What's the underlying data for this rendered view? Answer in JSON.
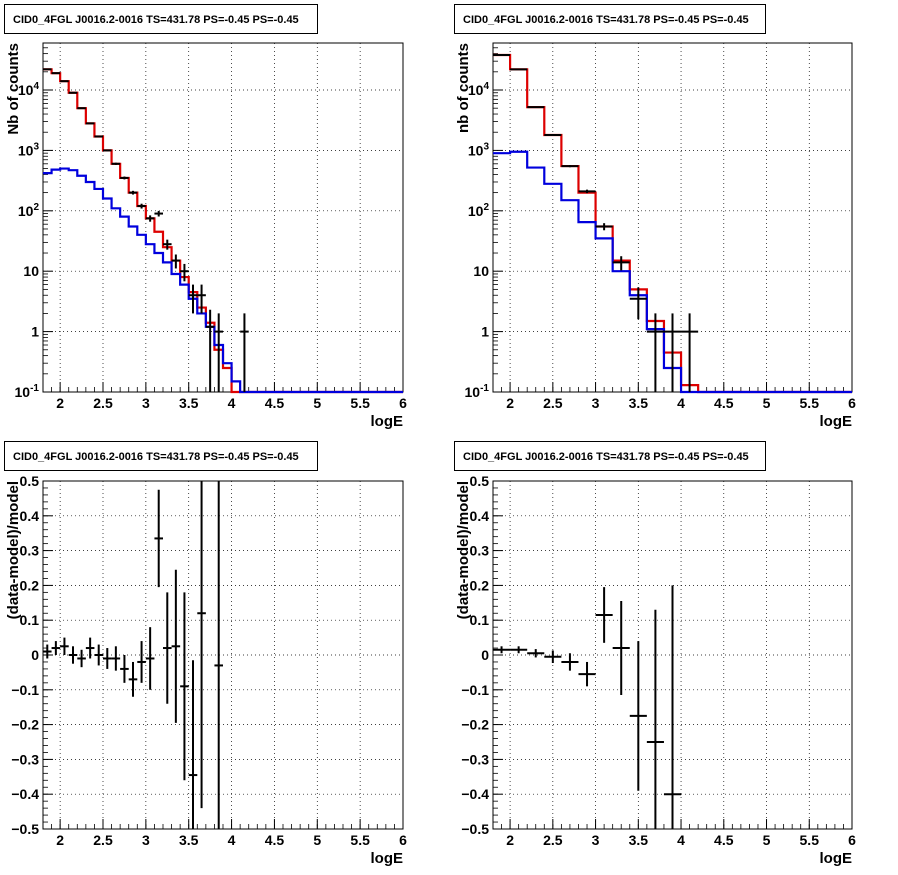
{
  "chart_data": [
    {
      "type": "histogram",
      "title": "CID0_4FGL J0016.2-0016 TS=431.78 PS=-0.45 PS=-0.45",
      "xlabel": "logE",
      "ylabel": "Nb of counts",
      "xlim": [
        1.8,
        6.0
      ],
      "ylim": [
        0.1,
        60000
      ],
      "yscale": "log",
      "grid": true,
      "xticks": [
        "2",
        "2.5",
        "3",
        "3.5",
        "4",
        "4.5",
        "5",
        "5.5",
        "6"
      ],
      "yticks": [
        "10^-1",
        "1",
        "10",
        "10^2",
        "10^3",
        "10^4"
      ],
      "bin_edges": [
        1.8,
        1.9,
        2.0,
        2.1,
        2.2,
        2.3,
        2.4,
        2.5,
        2.6,
        2.7,
        2.8,
        2.9,
        3.0,
        3.1,
        3.2,
        3.3,
        3.4,
        3.5,
        3.6,
        3.7,
        3.8,
        3.9,
        4.0,
        4.1,
        4.2,
        4.3,
        4.4,
        4.5,
        4.6,
        4.7,
        4.8,
        4.9,
        5.0,
        5.1,
        5.2,
        5.3,
        5.4,
        5.5,
        5.6,
        5.7,
        5.8,
        5.9,
        6.0
      ],
      "series": [
        {
          "color": "#dd0000",
          "style": "step",
          "values": [
            22000,
            19000,
            14000,
            9000,
            5000,
            2800,
            1700,
            1000,
            600,
            350,
            200,
            120,
            75,
            45,
            25,
            15,
            8,
            4.5,
            2.5,
            1.4,
            0.5,
            0.25,
            0.1,
            0.1,
            0.1,
            0.1,
            0.1,
            0.1,
            0.1,
            0.1,
            0.1,
            0.1,
            0.1,
            0.1,
            0.1,
            0.1,
            0.1,
            0.1,
            0.1,
            0.1,
            0.1,
            0.1
          ]
        },
        {
          "color": "#0000dd",
          "style": "step",
          "values": [
            420,
            480,
            500,
            470,
            380,
            300,
            230,
            160,
            110,
            80,
            55,
            40,
            28,
            20,
            14,
            9,
            6,
            3.5,
            2,
            1.2,
            0.6,
            0.3,
            0.15,
            0.1,
            0.1,
            0.1,
            0.1,
            0.1,
            0.1,
            0.1,
            0.1,
            0.1,
            0.1,
            0.1,
            0.1,
            0.1,
            0.1,
            0.1,
            0.1,
            0.1,
            0.1,
            0.1
          ]
        },
        {
          "color": "#000000",
          "style": "points",
          "x": [
            1.85,
            1.95,
            2.05,
            2.15,
            2.25,
            2.35,
            2.45,
            2.55,
            2.65,
            2.75,
            2.85,
            2.95,
            3.05,
            3.15,
            3.25,
            3.35,
            3.45,
            3.55,
            3.65,
            3.75,
            3.85,
            4.15
          ],
          "y": [
            22000,
            19000,
            14000,
            9000,
            5000,
            2800,
            1700,
            1000,
            600,
            350,
            200,
            120,
            75,
            90,
            28,
            15,
            10,
            4,
            4,
            1.2,
            1,
            1
          ],
          "err": [
            150,
            140,
            120,
            95,
            70,
            53,
            41,
            32,
            25,
            19,
            14,
            11,
            9,
            9.5,
            5.3,
            3.9,
            3.2,
            2,
            2,
            1.1,
            1,
            1
          ]
        }
      ]
    },
    {
      "type": "histogram",
      "title": "CID0_4FGL J0016.2-0016 TS=431.78 PS=-0.45 PS=-0.45",
      "xlabel": "logE",
      "ylabel": "nb of counts",
      "xlim": [
        1.8,
        6.0
      ],
      "ylim": [
        0.1,
        60000
      ],
      "yscale": "log",
      "grid": true,
      "xticks": [
        "2",
        "2.5",
        "3",
        "3.5",
        "4",
        "4.5",
        "5",
        "5.5",
        "6"
      ],
      "yticks": [
        "10^-1",
        "1",
        "10",
        "10^2",
        "10^3",
        "10^4"
      ],
      "bin_edges": [
        1.8,
        2.0,
        2.2,
        2.4,
        2.6,
        2.8,
        3.0,
        3.2,
        3.4,
        3.6,
        3.8,
        4.0,
        4.2,
        4.4,
        4.6,
        4.8,
        5.0,
        5.2,
        5.4,
        5.6,
        5.8,
        6.0
      ],
      "series": [
        {
          "color": "#dd0000",
          "style": "step",
          "values": [
            38000,
            22000,
            5200,
            1800,
            550,
            200,
            55,
            15,
            5,
            1.5,
            0.45,
            0.13,
            0.1,
            0.1,
            0.1,
            0.1,
            0.1,
            0.1,
            0.1,
            0.1,
            0.1
          ]
        },
        {
          "color": "#0000dd",
          "style": "step",
          "values": [
            900,
            950,
            520,
            280,
            150,
            65,
            35,
            10,
            4,
            1.1,
            0.25,
            0.1,
            0.1,
            0.1,
            0.1,
            0.1,
            0.1,
            0.1,
            0.1,
            0.1,
            0.1
          ]
        },
        {
          "color": "#000000",
          "style": "points",
          "x": [
            1.9,
            2.1,
            2.3,
            2.5,
            2.7,
            2.9,
            3.1,
            3.3,
            3.5,
            3.7,
            3.9,
            4.1
          ],
          "y": [
            38000,
            22000,
            5200,
            1800,
            550,
            210,
            55,
            14,
            3.5,
            1,
            1,
            1
          ],
          "err": [
            195,
            148,
            72,
            42,
            23,
            14,
            7.4,
            3.7,
            1.9,
            1,
            1,
            1
          ]
        }
      ]
    },
    {
      "type": "scatter",
      "title": "CID0_4FGL J0016.2-0016 TS=431.78 PS=-0.45 PS=-0.45",
      "xlabel": "logE",
      "ylabel": "(data-model)/model",
      "xlim": [
        1.8,
        6.0
      ],
      "ylim": [
        -0.5,
        0.5
      ],
      "grid": true,
      "xticks": [
        "2",
        "2.5",
        "3",
        "3.5",
        "4",
        "4.5",
        "5",
        "5.5",
        "6"
      ],
      "yticks": [
        "−0.5",
        "−0.4",
        "−0.3",
        "−0.2",
        "−0.1",
        "0",
        "0.1",
        "0.2",
        "0.3",
        "0.4",
        "0.5"
      ],
      "series": [
        {
          "color": "#000000",
          "style": "points",
          "xhalf": 0.05,
          "x": [
            1.85,
            1.95,
            2.05,
            2.15,
            2.25,
            2.35,
            2.45,
            2.55,
            2.65,
            2.75,
            2.85,
            2.95,
            3.05,
            3.15,
            3.25,
            3.35,
            3.45,
            3.55,
            3.65,
            3.85
          ],
          "y": [
            0.01,
            0.02,
            0.025,
            0.0,
            -0.01,
            0.02,
            0.0,
            -0.01,
            -0.01,
            -0.04,
            -0.07,
            -0.02,
            -0.01,
            0.335,
            0.02,
            0.025,
            -0.09,
            -0.345,
            0.12,
            -0.03
          ],
          "err": [
            0.02,
            0.02,
            0.025,
            0.025,
            0.025,
            0.03,
            0.03,
            0.03,
            0.035,
            0.04,
            0.05,
            0.06,
            0.09,
            0.14,
            0.16,
            0.22,
            0.27,
            0.33,
            0.56,
            0.95
          ]
        }
      ]
    },
    {
      "type": "scatter",
      "title": "CID0_4FGL J0016.2-0016 TS=431.78 PS=-0.45 PS=-0.45",
      "xlabel": "logE",
      "ylabel": "(data-model)/model",
      "xlim": [
        1.8,
        6.0
      ],
      "ylim": [
        -0.5,
        0.5
      ],
      "grid": true,
      "xticks": [
        "2",
        "2.5",
        "3",
        "3.5",
        "4",
        "4.5",
        "5",
        "5.5",
        "6"
      ],
      "yticks": [
        "−0.5",
        "−0.4",
        "−0.3",
        "−0.2",
        "−0.1",
        "0",
        "0.1",
        "0.2",
        "0.3",
        "0.4",
        "0.5"
      ],
      "series": [
        {
          "color": "#000000",
          "style": "points",
          "xhalf": 0.1,
          "x": [
            1.9,
            2.1,
            2.3,
            2.5,
            2.7,
            2.9,
            3.1,
            3.3,
            3.5,
            3.7,
            3.9
          ],
          "y": [
            0.015,
            0.015,
            0.005,
            -0.005,
            -0.02,
            -0.055,
            0.115,
            0.02,
            -0.175,
            -0.25,
            -0.4
          ],
          "err": [
            0.01,
            0.01,
            0.012,
            0.018,
            0.025,
            0.035,
            0.08,
            0.135,
            0.215,
            0.38,
            0.6
          ]
        }
      ]
    }
  ]
}
